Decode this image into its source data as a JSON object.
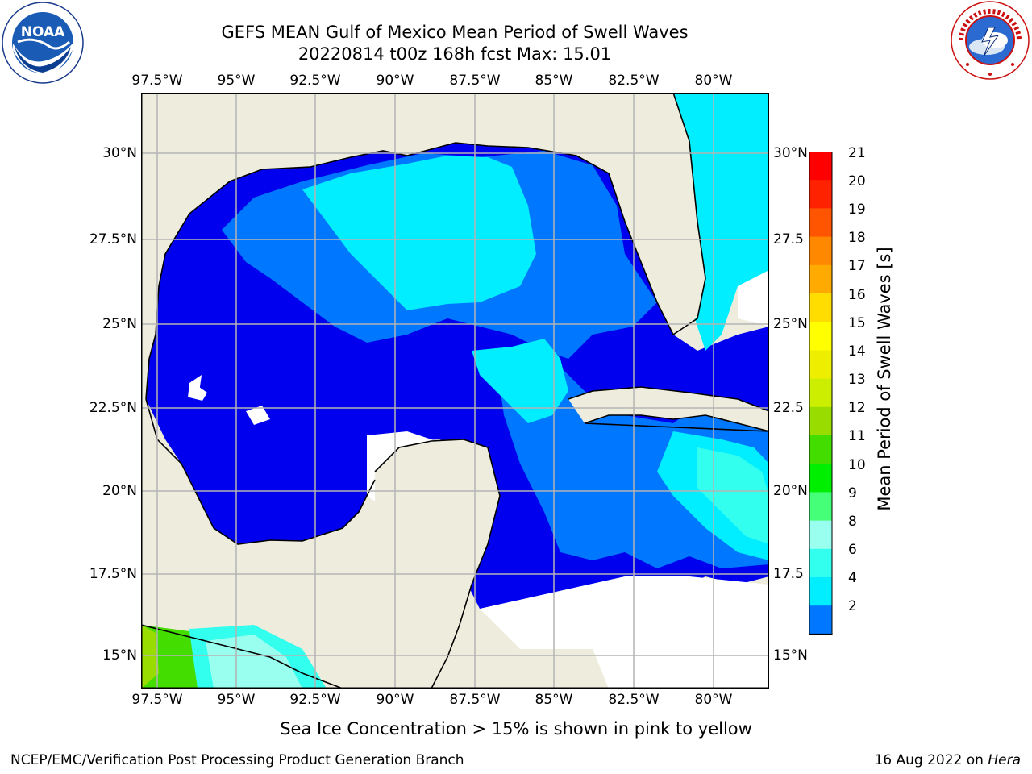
{
  "title": {
    "line1": "GEFS MEAN Gulf of Mexico Mean Period of Swell Waves",
    "line2": "20220814 t00z 168h fcst   Max: 15.01"
  },
  "map": {
    "lon_ticks_top": [
      "97.5°W",
      "95°W",
      "92.5°W",
      "90°W",
      "87.5°W",
      "85°W",
      "82.5°W",
      "80°W"
    ],
    "lon_ticks_bottom": [
      "97.5°W",
      "95°W",
      "92.5°W",
      "90°W",
      "87.5°W",
      "85°W",
      "82.5°W",
      "80°W"
    ],
    "lat_ticks_left": [
      "30°N",
      "27.5°N",
      "25°N",
      "22.5°N",
      "20°N",
      "17.5°N",
      "15°N"
    ],
    "lat_ticks_right": [
      "30°N",
      "27.5",
      "25°N",
      "22.5",
      "20°N",
      "17.5",
      "15°N"
    ],
    "colors": {
      "land": "#eeecdc",
      "no_data": "#ffffff",
      "grid": "#b4b4b4",
      "coast": "#000000"
    }
  },
  "colorbar": {
    "label": "Mean Period of Swell Waves [s]",
    "tick_labels": [
      "21",
      "20",
      "19",
      "18",
      "17",
      "16",
      "15",
      "14",
      "13",
      "12",
      "11",
      "10",
      "9",
      "8",
      "6",
      "4",
      "2"
    ],
    "levels": [
      {
        "min": 0,
        "color": "#0000ee"
      },
      {
        "min": 2,
        "color": "#0077ff"
      },
      {
        "min": 4,
        "color": "#00eeff"
      },
      {
        "min": 6,
        "color": "#33ffee"
      },
      {
        "min": 8,
        "color": "#99ffee"
      },
      {
        "min": 9,
        "color": "#44ff77"
      },
      {
        "min": 10,
        "color": "#00ee00"
      },
      {
        "min": 11,
        "color": "#44dd00"
      },
      {
        "min": 12,
        "color": "#99dd00"
      },
      {
        "min": 13,
        "color": "#ccee00"
      },
      {
        "min": 14,
        "color": "#eeee00"
      },
      {
        "min": 15,
        "color": "#ffff00"
      },
      {
        "min": 16,
        "color": "#ffdd00"
      },
      {
        "min": 17,
        "color": "#ffaa00"
      },
      {
        "min": 18,
        "color": "#ff8800"
      },
      {
        "min": 19,
        "color": "#ff5500"
      },
      {
        "min": 20,
        "color": "#ff2200"
      },
      {
        "min": 21,
        "color": "#ff0000"
      }
    ]
  },
  "footnote": "Sea Ice Concentration > 15% is shown in pink to yellow",
  "credit_left": "NCEP/EMC/Verification Post Processing Product Generation Branch",
  "credit_right": {
    "date": "16 Aug 2022 on ",
    "host": "Hera"
  },
  "logos": {
    "left": {
      "icon": "noaa-logo",
      "text": "NOAA"
    },
    "right": {
      "icon": "nws-logo",
      "text": "NATIONAL WEATHER SERVICE"
    }
  }
}
